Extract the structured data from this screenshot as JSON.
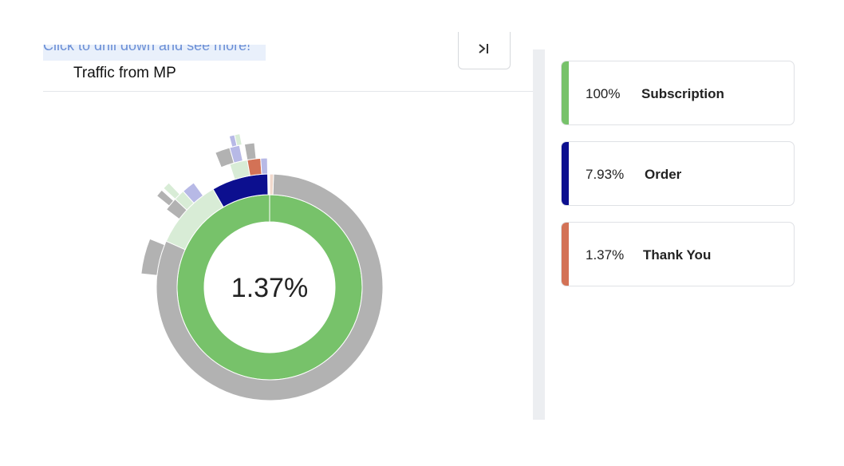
{
  "header": {
    "hint_text": "Click to drill down and see more!",
    "chart_title": "Traffic from MP",
    "collapse_button_icon": "collapse-icon"
  },
  "center_value": "1.37%",
  "legend": [
    {
      "percent": "100%",
      "label": "Subscription",
      "color": "#77c26a"
    },
    {
      "percent": "7.93%",
      "label": "Order",
      "color": "#0c0f8f"
    },
    {
      "percent": "1.37%",
      "label": "Thank You",
      "color": "#d37256"
    }
  ],
  "colors": {
    "subscription": "#77c26a",
    "order": "#0c0f8f",
    "thank_you": "#d37256",
    "other": "#b2b2b2",
    "light_green": "#d8ecd6",
    "lavender": "#b7b9e6"
  }
}
